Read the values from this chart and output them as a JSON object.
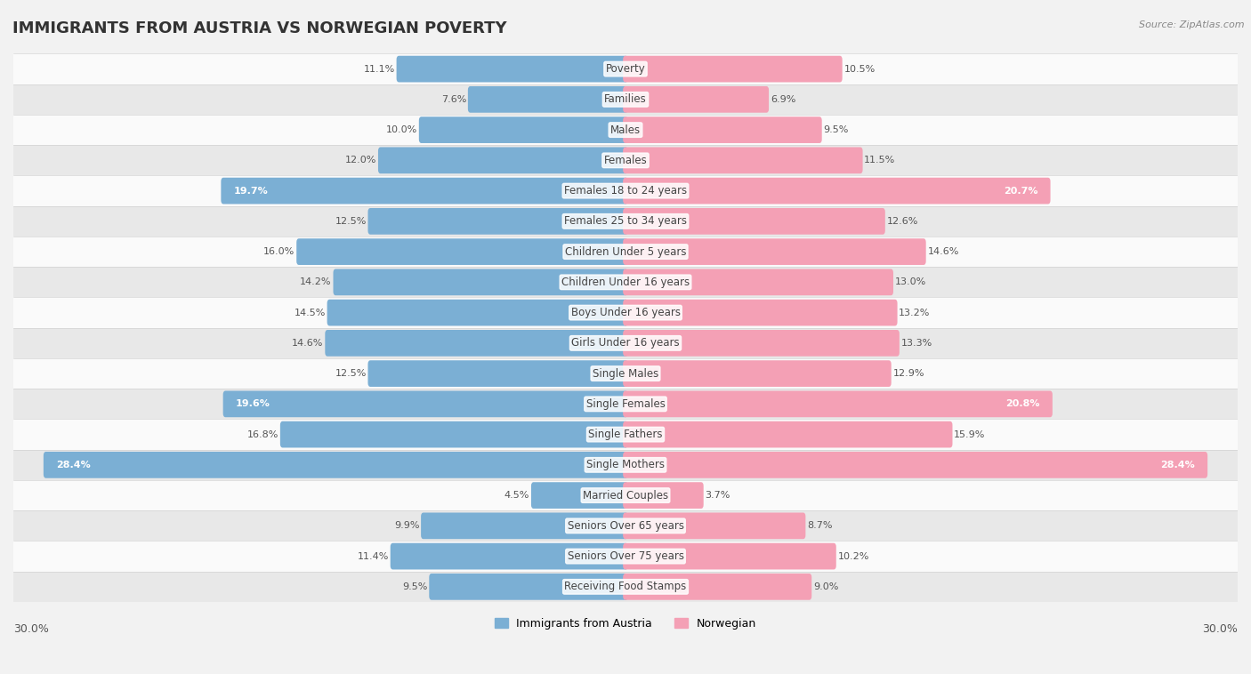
{
  "title": "IMMIGRANTS FROM AUSTRIA VS NORWEGIAN POVERTY",
  "source": "Source: ZipAtlas.com",
  "categories": [
    "Poverty",
    "Families",
    "Males",
    "Females",
    "Females 18 to 24 years",
    "Females 25 to 34 years",
    "Children Under 5 years",
    "Children Under 16 years",
    "Boys Under 16 years",
    "Girls Under 16 years",
    "Single Males",
    "Single Females",
    "Single Fathers",
    "Single Mothers",
    "Married Couples",
    "Seniors Over 65 years",
    "Seniors Over 75 years",
    "Receiving Food Stamps"
  ],
  "austria_values": [
    11.1,
    7.6,
    10.0,
    12.0,
    19.7,
    12.5,
    16.0,
    14.2,
    14.5,
    14.6,
    12.5,
    19.6,
    16.8,
    28.4,
    4.5,
    9.9,
    11.4,
    9.5
  ],
  "norwegian_values": [
    10.5,
    6.9,
    9.5,
    11.5,
    20.7,
    12.6,
    14.6,
    13.0,
    13.2,
    13.3,
    12.9,
    20.8,
    15.9,
    28.4,
    3.7,
    8.7,
    10.2,
    9.0
  ],
  "austria_color": "#7bafd4",
  "norwegian_color": "#f4a0b5",
  "background_color": "#f2f2f2",
  "row_light": "#fafafa",
  "row_dark": "#e8e8e8",
  "xlim": 30.0,
  "bar_height": 0.62,
  "legend_labels": [
    "Immigrants from Austria",
    "Norwegian"
  ],
  "title_fontsize": 13,
  "label_fontsize": 8.5,
  "value_fontsize": 8.0,
  "highlight_threshold": 18.0
}
